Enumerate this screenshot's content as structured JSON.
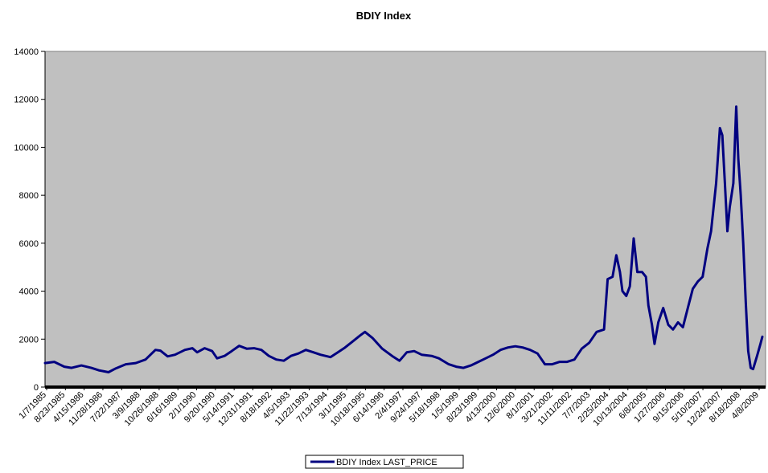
{
  "chart_data": {
    "type": "line",
    "title": "BDIY Index",
    "xlabel": "",
    "ylabel": "",
    "ylim": [
      0,
      14000
    ],
    "y_ticks": [
      0,
      2000,
      4000,
      6000,
      8000,
      10000,
      12000,
      14000
    ],
    "x_tick_labels": [
      "1/7/1985",
      "8/23/1985",
      "4/15/1986",
      "11/28/1986",
      "7/22/1987",
      "3/9/1988",
      "10/26/1988",
      "6/16/1989",
      "2/1/1990",
      "9/20/1990",
      "5/14/1991",
      "12/31/1991",
      "8/18/1992",
      "4/5/1993",
      "11/22/1993",
      "7/13/1994",
      "3/1/1995",
      "10/18/1995",
      "6/14/1996",
      "2/4/1997",
      "9/24/1997",
      "5/18/1998",
      "1/5/1999",
      "8/23/1999",
      "4/13/2000",
      "12/6/2000",
      "8/1/2001",
      "3/21/2002",
      "11/11/2002",
      "7/7/2003",
      "2/25/2004",
      "10/13/2004",
      "6/8/2005",
      "1/27/2006",
      "9/15/2006",
      "5/10/2007",
      "12/24/2007",
      "8/18/2008",
      "4/8/2009"
    ],
    "grid": false,
    "plot_background": "#C0C0C0",
    "legend_position": "bottom",
    "series": [
      {
        "name": "BDIY Index LAST_PRICE",
        "color": "#000080",
        "points": [
          [
            "1985-01-07",
            1000
          ],
          [
            "1985-05-01",
            1050
          ],
          [
            "1985-09-01",
            850
          ],
          [
            "1985-12-01",
            800
          ],
          [
            "1986-04-01",
            900
          ],
          [
            "1986-08-01",
            800
          ],
          [
            "1986-11-01",
            700
          ],
          [
            "1987-03-01",
            620
          ],
          [
            "1987-06-01",
            780
          ],
          [
            "1987-10-01",
            950
          ],
          [
            "1988-02-01",
            1000
          ],
          [
            "1988-06-01",
            1150
          ],
          [
            "1988-10-01",
            1550
          ],
          [
            "1988-12-01",
            1520
          ],
          [
            "1989-03-01",
            1280
          ],
          [
            "1989-06-01",
            1350
          ],
          [
            "1989-10-01",
            1550
          ],
          [
            "1990-01-01",
            1620
          ],
          [
            "1990-03-01",
            1450
          ],
          [
            "1990-06-01",
            1620
          ],
          [
            "1990-09-01",
            1500
          ],
          [
            "1990-11-01",
            1200
          ],
          [
            "1991-02-01",
            1300
          ],
          [
            "1991-05-01",
            1500
          ],
          [
            "1991-08-01",
            1720
          ],
          [
            "1991-11-01",
            1600
          ],
          [
            "1992-02-01",
            1620
          ],
          [
            "1992-05-01",
            1550
          ],
          [
            "1992-08-01",
            1300
          ],
          [
            "1992-11-01",
            1150
          ],
          [
            "1993-02-01",
            1100
          ],
          [
            "1993-05-01",
            1300
          ],
          [
            "1993-08-01",
            1400
          ],
          [
            "1993-11-01",
            1550
          ],
          [
            "1994-02-01",
            1450
          ],
          [
            "1994-05-01",
            1350
          ],
          [
            "1994-09-01",
            1250
          ],
          [
            "1994-12-01",
            1450
          ],
          [
            "1995-03-01",
            1650
          ],
          [
            "1995-06-01",
            1900
          ],
          [
            "1995-09-01",
            2150
          ],
          [
            "1995-11-01",
            2300
          ],
          [
            "1996-02-01",
            2050
          ],
          [
            "1996-06-01",
            1600
          ],
          [
            "1996-10-01",
            1300
          ],
          [
            "1997-01-01",
            1100
          ],
          [
            "1997-04-01",
            1450
          ],
          [
            "1997-07-01",
            1500
          ],
          [
            "1997-10-01",
            1350
          ],
          [
            "1998-02-01",
            1300
          ],
          [
            "1998-05-01",
            1200
          ],
          [
            "1998-09-01",
            950
          ],
          [
            "1998-12-01",
            850
          ],
          [
            "1999-03-01",
            800
          ],
          [
            "1999-06-01",
            900
          ],
          [
            "1999-09-01",
            1050
          ],
          [
            "1999-12-01",
            1200
          ],
          [
            "2000-03-01",
            1350
          ],
          [
            "2000-06-01",
            1550
          ],
          [
            "2000-09-01",
            1650
          ],
          [
            "2000-12-01",
            1700
          ],
          [
            "2001-03-01",
            1650
          ],
          [
            "2001-06-01",
            1550
          ],
          [
            "2001-09-01",
            1400
          ],
          [
            "2001-12-01",
            950
          ],
          [
            "2002-03-01",
            950
          ],
          [
            "2002-06-01",
            1050
          ],
          [
            "2002-09-01",
            1050
          ],
          [
            "2002-12-01",
            1150
          ],
          [
            "2003-03-01",
            1600
          ],
          [
            "2003-06-01",
            1850
          ],
          [
            "2003-09-01",
            2300
          ],
          [
            "2003-12-01",
            2400
          ],
          [
            "2004-01-15",
            4500
          ],
          [
            "2004-03-15",
            4600
          ],
          [
            "2004-05-01",
            5500
          ],
          [
            "2004-06-15",
            4800
          ],
          [
            "2004-07-15",
            4000
          ],
          [
            "2004-09-01",
            3800
          ],
          [
            "2004-10-15",
            4200
          ],
          [
            "2004-12-01",
            6200
          ],
          [
            "2005-01-15",
            4800
          ],
          [
            "2005-03-15",
            4800
          ],
          [
            "2005-05-01",
            4600
          ],
          [
            "2005-06-01",
            3400
          ],
          [
            "2005-07-15",
            2600
          ],
          [
            "2005-08-15",
            1800
          ],
          [
            "2005-10-01",
            2700
          ],
          [
            "2005-12-01",
            3300
          ],
          [
            "2006-02-01",
            2600
          ],
          [
            "2006-04-01",
            2400
          ],
          [
            "2006-06-01",
            2700
          ],
          [
            "2006-08-01",
            2500
          ],
          [
            "2006-10-01",
            3300
          ],
          [
            "2006-12-01",
            4100
          ],
          [
            "2007-02-01",
            4400
          ],
          [
            "2007-04-01",
            4600
          ],
          [
            "2007-06-01",
            5800
          ],
          [
            "2007-07-15",
            6500
          ],
          [
            "2007-09-15",
            8500
          ],
          [
            "2007-11-01",
            10800
          ],
          [
            "2007-12-01",
            10500
          ],
          [
            "2008-01-01",
            8500
          ],
          [
            "2008-02-01",
            6500
          ],
          [
            "2008-03-01",
            7500
          ],
          [
            "2008-04-15",
            8500
          ],
          [
            "2008-05-20",
            11700
          ],
          [
            "2008-06-15",
            9500
          ],
          [
            "2008-07-15",
            8000
          ],
          [
            "2008-08-15",
            6000
          ],
          [
            "2008-09-15",
            3500
          ],
          [
            "2008-10-15",
            1500
          ],
          [
            "2008-11-15",
            800
          ],
          [
            "2008-12-15",
            750
          ],
          [
            "2009-02-01",
            1300
          ],
          [
            "2009-03-15",
            1800
          ],
          [
            "2009-04-08",
            2100
          ]
        ]
      }
    ]
  }
}
